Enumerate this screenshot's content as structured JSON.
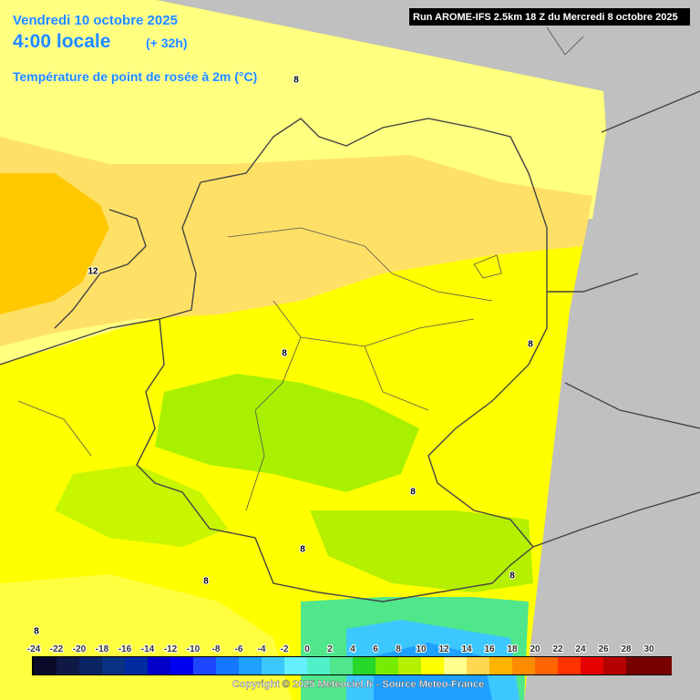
{
  "header": {
    "date": "Vendredi 10 octobre 2025",
    "time": "4:00 locale",
    "lead": "(+ 32h)",
    "parameter": "Température de point de rosée à 2m (°C)",
    "run": "Run AROME-IFS 2.5km 18 Z du Mercredi 8 octobre 2025"
  },
  "contour_labels": [
    "12",
    "8",
    "8",
    "8",
    "8",
    "8",
    "8",
    "8",
    "8"
  ],
  "legend": {
    "labels": [
      -24,
      -22,
      -20,
      -18,
      -16,
      -14,
      -12,
      -10,
      -8,
      -6,
      -4,
      -2,
      0,
      2,
      4,
      6,
      8,
      10,
      12,
      14,
      16,
      18,
      20,
      22,
      24,
      26,
      28,
      30
    ],
    "colors": [
      "#0a0a2a",
      "#101846",
      "#0a2464",
      "#0a3282",
      "#002aa0",
      "#0000c8",
      "#0000f0",
      "#1e46ff",
      "#1478ff",
      "#1ea0ff",
      "#3cc8ff",
      "#64f0ff",
      "#50f0c8",
      "#50e68c",
      "#28d828",
      "#78ec00",
      "#b4f000",
      "#ffff00",
      "#ffff8c",
      "#ffd750",
      "#ffb400",
      "#ff8c00",
      "#ff6400",
      "#ff3200",
      "#e60000",
      "#b40000",
      "#780000"
    ]
  },
  "footer": {
    "copyright": "Copyright © 2025 Meteociel.fr - Source Meteo-France"
  }
}
